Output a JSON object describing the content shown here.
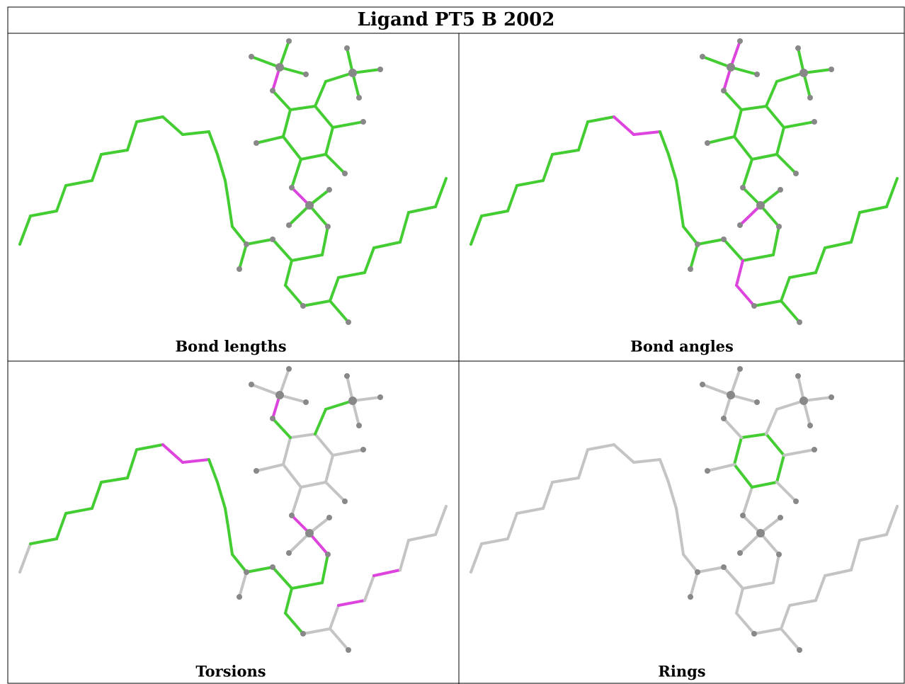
{
  "title": "Ligand PT5 B 2002",
  "panels": [
    {
      "caption": "Bond lengths"
    },
    {
      "caption": "Bond angles"
    },
    {
      "caption": "Torsions"
    },
    {
      "caption": "Rings"
    }
  ]
}
